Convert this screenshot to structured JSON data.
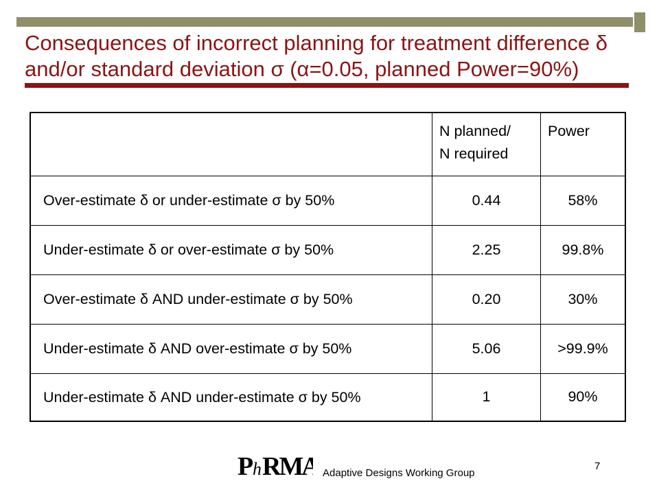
{
  "slide": {
    "title": "Consequences of incorrect planning for treatment difference δ and/or standard deviation σ (α=0.05, planned Power=90%)",
    "page_number": "7"
  },
  "table": {
    "header": {
      "col1": "",
      "col2_line1": "N planned/",
      "col2_line2": "N required",
      "col3": "Power"
    },
    "rows": [
      {
        "label": "Over-estimate δ or under-estimate σ by 50%",
        "ratio": "0.44",
        "power": "58%"
      },
      {
        "label": "Under-estimate δ or over-estimate σ by 50%",
        "ratio": "2.25",
        "power": "99.8%"
      },
      {
        "label": "Over-estimate δ AND under-estimate σ by 50%",
        "ratio": "0.20",
        "power": "30%"
      },
      {
        "label": "Under-estimate δ AND over-estimate σ by 50%",
        "ratio": "5.06",
        "power": ">99.9%"
      },
      {
        "label": "Under-estimate δ AND under-estimate σ by 50%",
        "ratio": "1",
        "power": "90%"
      }
    ]
  },
  "footer": {
    "logo_text": "PhRMA",
    "group": "Adaptive Designs Working Group"
  },
  "colors": {
    "title": "#8b1414",
    "accent_bar": "#8f8f6a"
  }
}
